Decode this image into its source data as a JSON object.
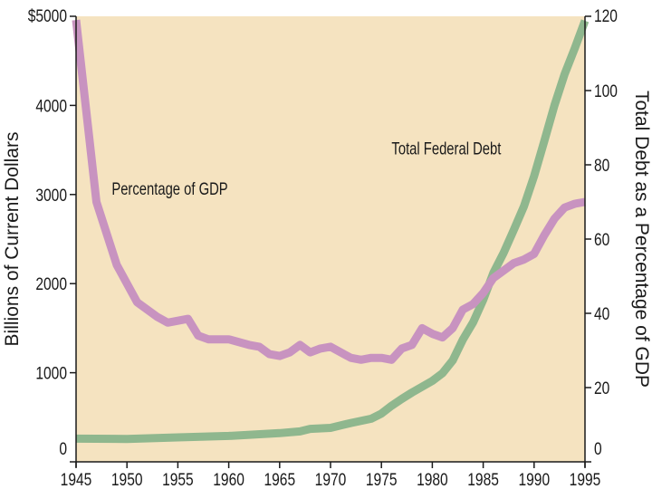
{
  "chart_data": {
    "type": "line",
    "title": "",
    "xlabel": "",
    "ylabel": "Billions of Current Dollars",
    "ylabel_right": "Total Debt as a Percentage of GDP",
    "xlim": [
      1945,
      1995
    ],
    "ylim": [
      0,
      5000
    ],
    "ylim_right": [
      0,
      120
    ],
    "x_ticks": [
      1945,
      1950,
      1955,
      1960,
      1965,
      1970,
      1975,
      1980,
      1985,
      1990,
      1995
    ],
    "x_tick_labels": [
      "1945",
      "1950",
      "1955",
      "1960",
      "1965",
      "1970",
      "1975",
      "1980",
      "1985",
      "1990",
      "1995"
    ],
    "y_ticks": [
      0,
      1000,
      2000,
      3000,
      4000,
      5000
    ],
    "y_tick_labels": [
      "0",
      "1000",
      "2000",
      "3000",
      "4000",
      "$5000"
    ],
    "y_ticks_right": [
      0,
      20,
      40,
      60,
      80,
      100,
      120
    ],
    "y_tick_labels_right": [
      "0",
      "20",
      "40",
      "60",
      "80",
      "100",
      "120"
    ],
    "grid": false,
    "colors": {
      "background": "#f5e3c0",
      "debt_line": "#8fb78e",
      "pct_line": "#c893c0",
      "axis": "#1a1a1a"
    },
    "series": [
      {
        "name": "Total Federal Debt",
        "axis": "left",
        "color": "#8fb78e",
        "x": [
          1945,
          1950,
          1955,
          1960,
          1965,
          1967,
          1968,
          1970,
          1972,
          1974,
          1975,
          1976,
          1977,
          1978,
          1980,
          1981,
          1982,
          1983,
          1984,
          1985,
          1986,
          1987,
          1988,
          1989,
          1990,
          1991,
          1992,
          1993,
          1994,
          1995
        ],
        "values": [
          260,
          257,
          274,
          291,
          322,
          341,
          370,
          381,
          436,
          484,
          542,
          629,
          706,
          777,
          909,
          994,
          1137,
          1371,
          1564,
          1817,
          2120,
          2345,
          2601,
          2868,
          3206,
          3598,
          4001,
          4351,
          4643,
          4950
        ]
      },
      {
        "name": "Percentage of GDP",
        "axis": "right",
        "color": "#c893c0",
        "x": [
          1945,
          1947,
          1949,
          1951,
          1953,
          1954,
          1955,
          1956,
          1957,
          1958,
          1960,
          1962,
          1963,
          1964,
          1965,
          1966,
          1967,
          1968,
          1969,
          1970,
          1971,
          1972,
          1973,
          1974,
          1975,
          1976,
          1977,
          1978,
          1979,
          1980,
          1981,
          1982,
          1983,
          1984,
          1985,
          1986,
          1987,
          1988,
          1989,
          1990,
          1991,
          1992,
          1993,
          1994,
          1995
        ],
        "values": [
          119,
          70,
          53,
          43,
          39,
          37.5,
          38,
          38.5,
          34,
          33,
          33,
          31.5,
          31,
          29,
          28.5,
          29.5,
          31.5,
          29.5,
          30.5,
          31,
          29.5,
          28,
          27.5,
          28,
          28,
          27.5,
          30.5,
          31.5,
          36,
          34.5,
          33.5,
          36,
          41,
          42.5,
          45.5,
          49.5,
          51.5,
          53.5,
          54.5,
          56,
          61,
          65.5,
          68.5,
          69.5,
          70
        ]
      }
    ],
    "annotations": [
      {
        "text": "Percentage of GDP",
        "x": 1948.5,
        "y": 3000
      },
      {
        "text": "Total Federal Debt",
        "x": 1976,
        "y": 3450
      }
    ]
  }
}
